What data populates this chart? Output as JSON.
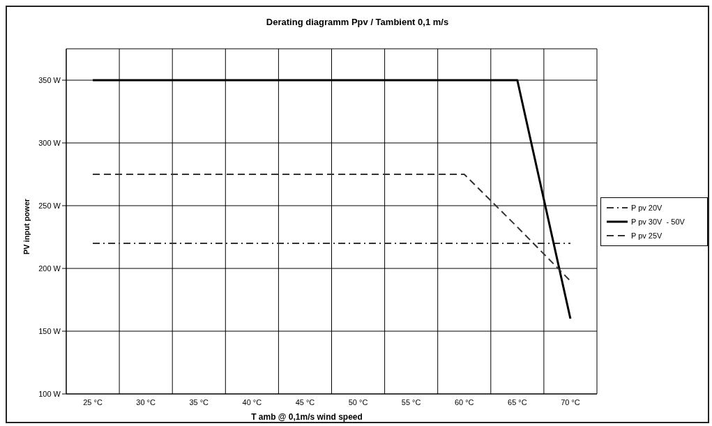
{
  "chart_data": {
    "type": "line",
    "title": "Derating diagramm Ppv / Tambient 0,1 m/s",
    "xlabel": "T amb  @ 0,1m/s wind speed",
    "ylabel": "PV input power",
    "categories": [
      "25 °C",
      "30 °C",
      "35 °C",
      "40 °C",
      "45 °C",
      "50 °C",
      "55 °C",
      "60 °C",
      "65 °C",
      "70 °C"
    ],
    "series": [
      {
        "name": "P pv 20V",
        "color": "#333333",
        "line_style": "dotted",
        "values": [
          220,
          220,
          220,
          220,
          220,
          220,
          220,
          220,
          220,
          220
        ]
      },
      {
        "name": "P pv 30V  - 50V",
        "color": "#000000",
        "line_style": "solid",
        "values": [
          350,
          350,
          350,
          350,
          350,
          350,
          350,
          350,
          350,
          160
        ]
      },
      {
        "name": "P pv 25V",
        "color": "#333333",
        "line_style": "dashed",
        "values": [
          275,
          275,
          275,
          275,
          275,
          275,
          275,
          275,
          233,
          190
        ]
      }
    ],
    "ylim": [
      100,
      375
    ],
    "yticks": [
      {
        "value": 100,
        "label": "100 W"
      },
      {
        "value": 150,
        "label": "150 W"
      },
      {
        "value": 200,
        "label": "200 W"
      },
      {
        "value": 250,
        "label": "250 W"
      },
      {
        "value": 300,
        "label": "300 W"
      },
      {
        "value": 350,
        "label": "350 W"
      }
    ],
    "grid": true,
    "legend": "right",
    "marker": "none"
  }
}
